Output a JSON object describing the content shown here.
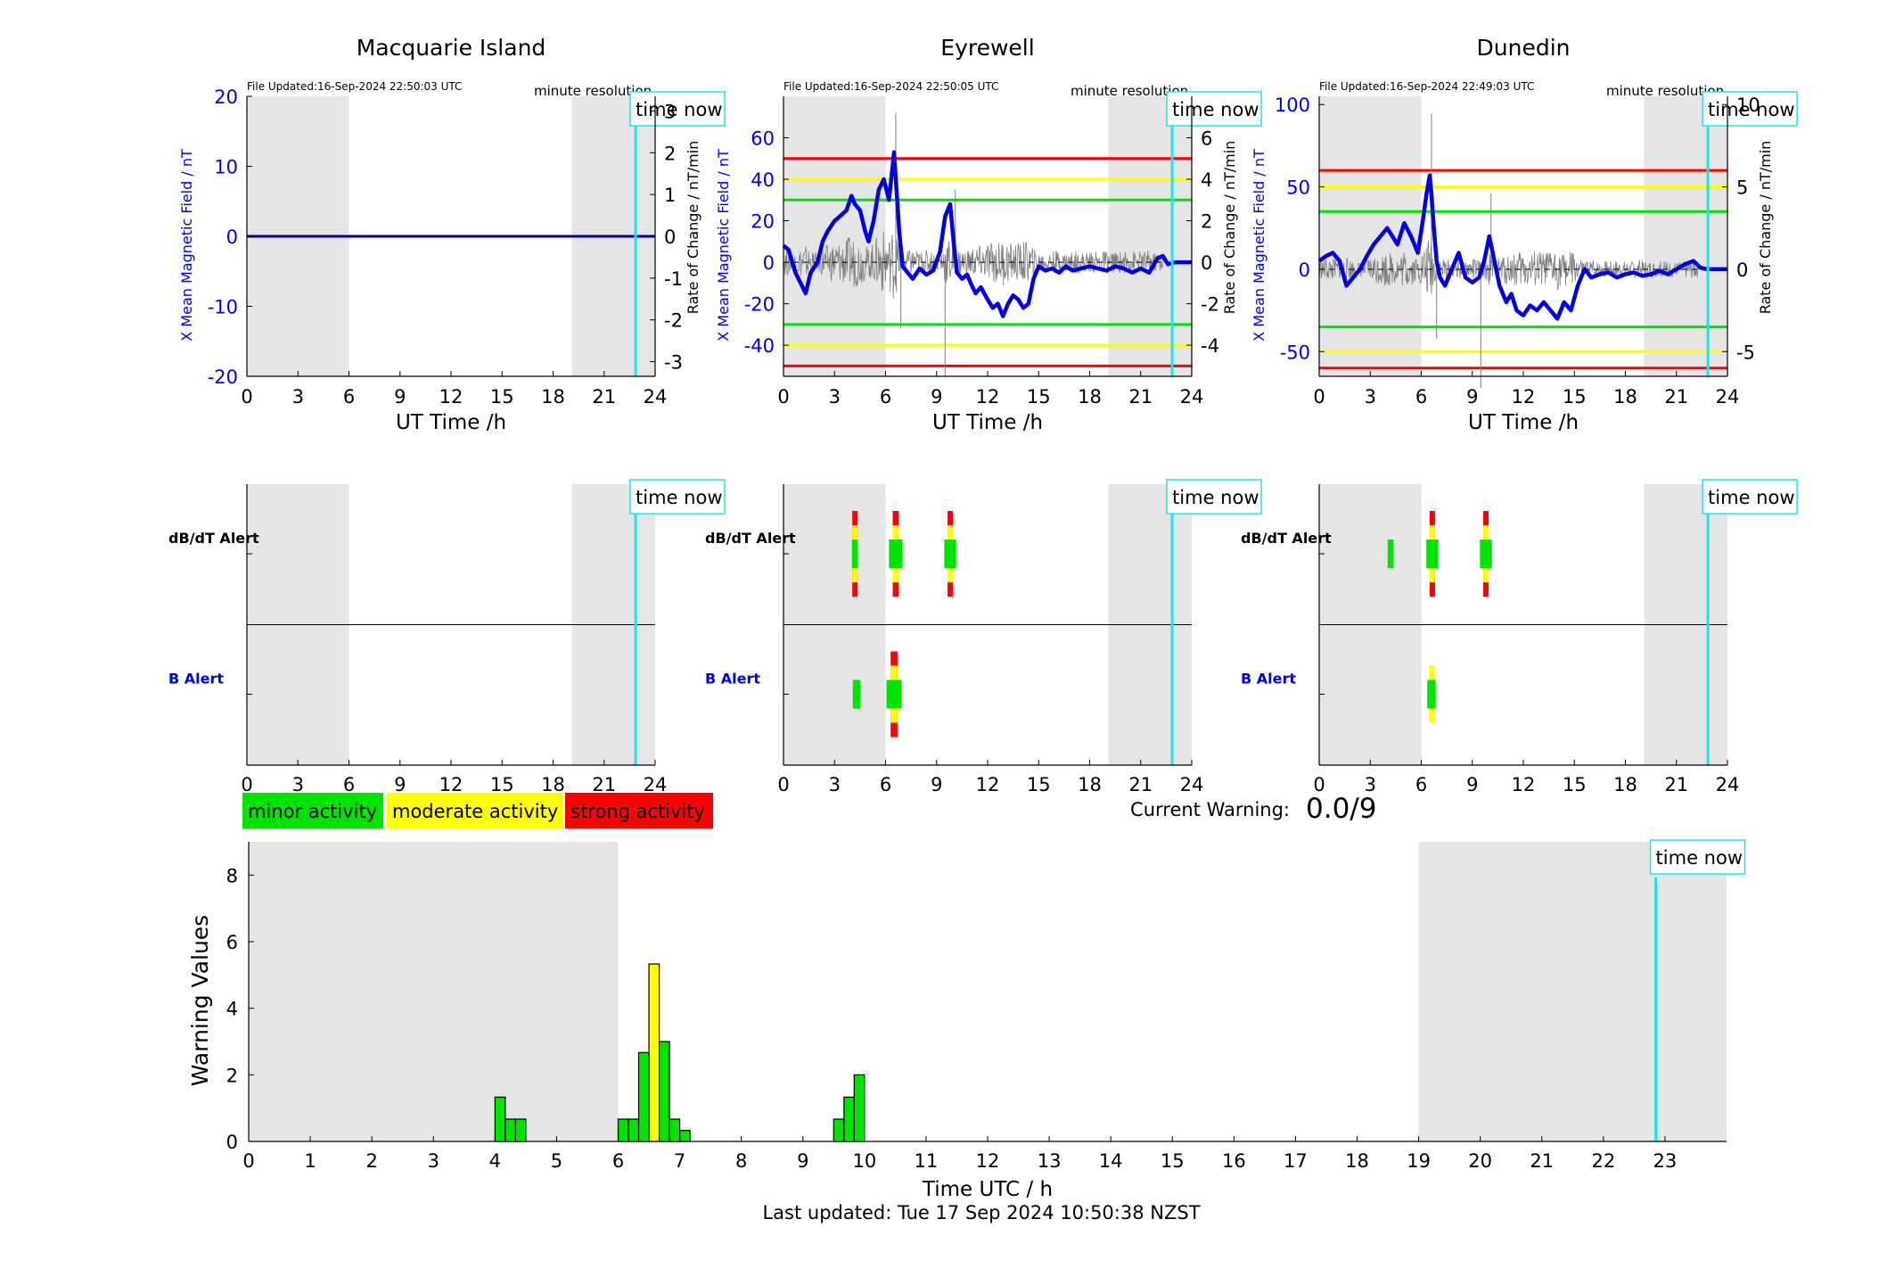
{
  "page": {
    "current_warning_label": "Current Warning:",
    "current_warning_value": "0.0/9",
    "last_updated": "Last updated: Tue 17 Sep 2024 10:50:38 NZST",
    "time_now_label": "time now",
    "minute_resolution_label": "minute resolution",
    "colors": {
      "field_line": "#0000e6",
      "time_now_line": "#1ee3ee",
      "night_shading": "#e5e5e5",
      "minor": "#00e400",
      "moderate": "#ffff00",
      "strong": "#ff0000",
      "rate_trace": "#7f7f7f"
    },
    "legend": [
      {
        "label": "minor activity",
        "color": "#00e400"
      },
      {
        "label": "moderate activity",
        "color": "#ffff00"
      },
      {
        "label": "strong activity",
        "color": "#ff0000"
      }
    ]
  },
  "chart_data": [
    {
      "id": "macquarie-field",
      "type": "line",
      "title": "Macquarie Island",
      "file_updated": "File Updated:16-Sep-2024 22:50:03 UTC",
      "xlabel": "UT Time /h",
      "ylabel_left": "X Mean Magnetic Field / nT",
      "ylabel_right": "Rate of Change / nT/min",
      "xlim": [
        0,
        24
      ],
      "x_ticks": [
        0,
        3,
        6,
        9,
        12,
        15,
        18,
        21,
        24
      ],
      "ylim": [
        -20,
        20
      ],
      "y_ticks": [
        -20,
        -10,
        0,
        10,
        20
      ],
      "y2lim": [
        -3.35,
        3.35
      ],
      "y2_ticks": [
        -3,
        -2,
        -1,
        0,
        1,
        2,
        3
      ],
      "night_shading": [
        [
          0,
          6
        ],
        [
          19.1,
          24
        ]
      ],
      "time_now": 22.85,
      "thresholds": [],
      "series": [
        {
          "x": [
            0,
            24
          ],
          "y": [
            0,
            0
          ]
        }
      ],
      "rate_noise": false
    },
    {
      "id": "eyrewell-field",
      "type": "line",
      "title": "Eyrewell",
      "file_updated": "File Updated:16-Sep-2024 22:50:05 UTC",
      "xlabel": "UT Time /h",
      "ylabel_left": "X Mean Magnetic Field / nT",
      "ylabel_right": "Rate of Change / nT/min",
      "xlim": [
        0,
        24
      ],
      "x_ticks": [
        0,
        3,
        6,
        9,
        12,
        15,
        18,
        21,
        24
      ],
      "ylim": [
        -55,
        80
      ],
      "y_ticks": [
        -40,
        -20,
        0,
        20,
        40,
        60
      ],
      "y2lim": [
        -5.5,
        8
      ],
      "y2_ticks": [
        -4,
        -2,
        0,
        2,
        4,
        6
      ],
      "night_shading": [
        [
          0,
          6
        ],
        [
          19.1,
          24
        ]
      ],
      "time_now": 22.85,
      "thresholds": [
        {
          "value": 50,
          "color": "#ff0000"
        },
        {
          "value": 40,
          "color": "#ffff00"
        },
        {
          "value": 30,
          "color": "#00e400"
        },
        {
          "value": -30,
          "color": "#00e400"
        },
        {
          "value": -40,
          "color": "#ffff00"
        },
        {
          "value": -50,
          "color": "#ff0000"
        }
      ],
      "series": [
        {
          "x": [
            0,
            0.3,
            0.7,
            1.0,
            1.3,
            1.6,
            2.0,
            2.3,
            2.6,
            3.0,
            3.3,
            3.7,
            4.0,
            4.2,
            4.5,
            4.8,
            5.0,
            5.3,
            5.6,
            5.9,
            6.2,
            6.4,
            6.5,
            6.6,
            6.7,
            6.8,
            7.0,
            7.3,
            7.6,
            8.0,
            8.4,
            8.8,
            9.2,
            9.5,
            9.8,
            10.0,
            10.2,
            10.5,
            10.8,
            11.0,
            11.3,
            11.6,
            12.0,
            12.3,
            12.6,
            12.9,
            13.2,
            13.5,
            13.8,
            14.1,
            14.4,
            14.7,
            15.0,
            15.4,
            15.8,
            16.2,
            16.6,
            17.0,
            17.5,
            18.0,
            18.5,
            19.0,
            19.5,
            20.0,
            20.5,
            21.0,
            21.5,
            22.0,
            22.3,
            22.6,
            23.0,
            24.0
          ],
          "y": [
            8,
            6,
            -5,
            -10,
            -15,
            -5,
            0,
            10,
            15,
            20,
            22,
            25,
            32,
            28,
            25,
            15,
            10,
            20,
            35,
            40,
            30,
            45,
            53,
            40,
            28,
            15,
            -2,
            -5,
            -8,
            -3,
            -6,
            -4,
            5,
            22,
            28,
            10,
            -5,
            -8,
            -6,
            -10,
            -15,
            -12,
            -18,
            -22,
            -20,
            -26,
            -20,
            -16,
            -18,
            -22,
            -20,
            -8,
            -2,
            -4,
            -3,
            -5,
            -2,
            -4,
            -3,
            -2,
            -3,
            -4,
            -2,
            -3,
            -5,
            -3,
            -5,
            2,
            3,
            -1,
            0,
            0
          ]
        }
      ],
      "rate_noise": true
    },
    {
      "id": "dunedin-field",
      "type": "line",
      "title": "Dunedin",
      "file_updated": "File Updated:16-Sep-2024 22:49:03 UTC",
      "xlabel": "UT Time /h",
      "ylabel_left": "X Mean Magnetic Field / nT",
      "ylabel_right": "Rate of Change / nT/min",
      "xlim": [
        0,
        24
      ],
      "x_ticks": [
        0,
        3,
        6,
        9,
        12,
        15,
        18,
        21,
        24
      ],
      "ylim": [
        -65,
        105
      ],
      "y_ticks": [
        -50,
        0,
        50,
        100
      ],
      "y2lim": [
        -6.5,
        10.5
      ],
      "y2_ticks": [
        -5,
        0,
        5,
        10
      ],
      "night_shading": [
        [
          0,
          6
        ],
        [
          19.1,
          24
        ]
      ],
      "time_now": 22.85,
      "thresholds": [
        {
          "value": 60,
          "color": "#ff0000"
        },
        {
          "value": 50,
          "color": "#ffff00"
        },
        {
          "value": 35,
          "color": "#00e400"
        },
        {
          "value": -35,
          "color": "#00e400"
        },
        {
          "value": -50,
          "color": "#ffff00"
        },
        {
          "value": -60,
          "color": "#ff0000"
        }
      ],
      "series": [
        {
          "x": [
            0,
            0.4,
            0.8,
            1.2,
            1.6,
            2.0,
            2.4,
            2.8,
            3.2,
            3.6,
            4.0,
            4.3,
            4.6,
            5.0,
            5.4,
            5.8,
            6.1,
            6.3,
            6.5,
            6.6,
            6.7,
            6.9,
            7.1,
            7.4,
            7.8,
            8.2,
            8.6,
            9.0,
            9.4,
            9.7,
            10.0,
            10.3,
            10.6,
            11.0,
            11.3,
            11.6,
            12.0,
            12.4,
            12.8,
            13.2,
            13.6,
            14.0,
            14.4,
            14.8,
            15.2,
            15.6,
            16.0,
            16.5,
            17.0,
            17.5,
            18.0,
            18.5,
            19.0,
            19.5,
            20.0,
            20.5,
            21.0,
            21.5,
            22.0,
            22.4,
            22.8,
            24.0
          ],
          "y": [
            5,
            8,
            10,
            5,
            -10,
            -5,
            0,
            8,
            15,
            20,
            25,
            20,
            15,
            28,
            20,
            10,
            30,
            45,
            57,
            45,
            30,
            5,
            -5,
            -10,
            0,
            10,
            -5,
            -8,
            -5,
            5,
            20,
            5,
            -10,
            -20,
            -15,
            -25,
            -28,
            -22,
            -25,
            -20,
            -25,
            -30,
            -20,
            -25,
            -10,
            0,
            -5,
            -3,
            -2,
            -5,
            -3,
            -2,
            -4,
            -3,
            -1,
            -3,
            0,
            3,
            5,
            1,
            0,
            0
          ]
        }
      ],
      "rate_noise": true
    },
    {
      "id": "macquarie-alerts",
      "type": "bar",
      "row_labels": [
        "dB/dT Alert",
        "B Alert"
      ],
      "xlim": [
        0,
        24
      ],
      "x_ticks": [
        0,
        3,
        6,
        9,
        12,
        15,
        18,
        21,
        24
      ],
      "night_shading": [
        [
          0,
          6
        ],
        [
          19.1,
          24
        ]
      ],
      "time_now": 22.85,
      "dbdt": [],
      "b": []
    },
    {
      "id": "eyrewell-alerts",
      "type": "bar",
      "row_labels": [
        "dB/dT Alert",
        "B Alert"
      ],
      "xlim": [
        0,
        24
      ],
      "x_ticks": [
        0,
        3,
        6,
        9,
        12,
        15,
        18,
        21,
        24
      ],
      "night_shading": [
        [
          0,
          6
        ],
        [
          19.1,
          24
        ]
      ],
      "time_now": 22.85,
      "dbdt": [
        {
          "x": 4.2,
          "width": 0.35,
          "level": "strong"
        },
        {
          "x": 6.6,
          "width": 0.8,
          "level": "strong"
        },
        {
          "x": 9.8,
          "width": 0.7,
          "level": "strong"
        }
      ],
      "b": [
        {
          "x": 4.3,
          "width": 0.45,
          "level": "minor"
        },
        {
          "x": 6.5,
          "width": 0.9,
          "level": "strong"
        }
      ]
    },
    {
      "id": "dunedin-alerts",
      "type": "bar",
      "row_labels": [
        "dB/dT Alert",
        "B Alert"
      ],
      "xlim": [
        0,
        24
      ],
      "x_ticks": [
        0,
        3,
        6,
        9,
        12,
        15,
        18,
        21,
        24
      ],
      "night_shading": [
        [
          0,
          6
        ],
        [
          19.1,
          24
        ]
      ],
      "time_now": 22.85,
      "dbdt": [
        {
          "x": 4.2,
          "width": 0.35,
          "level": "minor"
        },
        {
          "x": 6.65,
          "width": 0.7,
          "level": "strong"
        },
        {
          "x": 9.8,
          "width": 0.7,
          "level": "strong"
        }
      ],
      "b": [
        {
          "x": 6.6,
          "width": 0.5,
          "level": "moderate"
        }
      ]
    },
    {
      "id": "warning-values",
      "type": "bar",
      "xlabel": "Time UTC / h",
      "ylabel": "Warning Values",
      "xlim": [
        0,
        24
      ],
      "x_ticks": [
        0,
        1,
        2,
        3,
        4,
        5,
        6,
        7,
        8,
        9,
        10,
        11,
        12,
        13,
        14,
        15,
        16,
        17,
        18,
        19,
        20,
        21,
        22,
        23
      ],
      "ylim": [
        0,
        9
      ],
      "y_ticks": [
        0,
        2,
        4,
        6,
        8
      ],
      "night_shading": [
        [
          0,
          6
        ],
        [
          19,
          24
        ]
      ],
      "time_now": 22.85,
      "bin_width": 0.1667,
      "bars": [
        {
          "x": 4.0,
          "value": 1.33,
          "level": "minor"
        },
        {
          "x": 4.167,
          "value": 0.67,
          "level": "minor"
        },
        {
          "x": 4.333,
          "value": 0.67,
          "level": "minor"
        },
        {
          "x": 6.0,
          "value": 0.67,
          "level": "minor"
        },
        {
          "x": 6.167,
          "value": 0.67,
          "level": "minor"
        },
        {
          "x": 6.333,
          "value": 2.67,
          "level": "minor"
        },
        {
          "x": 6.5,
          "value": 5.33,
          "level": "moderate"
        },
        {
          "x": 6.667,
          "value": 3.0,
          "level": "minor"
        },
        {
          "x": 6.833,
          "value": 0.67,
          "level": "minor"
        },
        {
          "x": 7.0,
          "value": 0.33,
          "level": "minor"
        },
        {
          "x": 9.5,
          "value": 0.67,
          "level": "minor"
        },
        {
          "x": 9.667,
          "value": 1.33,
          "level": "minor"
        },
        {
          "x": 9.833,
          "value": 2.0,
          "level": "minor"
        }
      ]
    }
  ]
}
